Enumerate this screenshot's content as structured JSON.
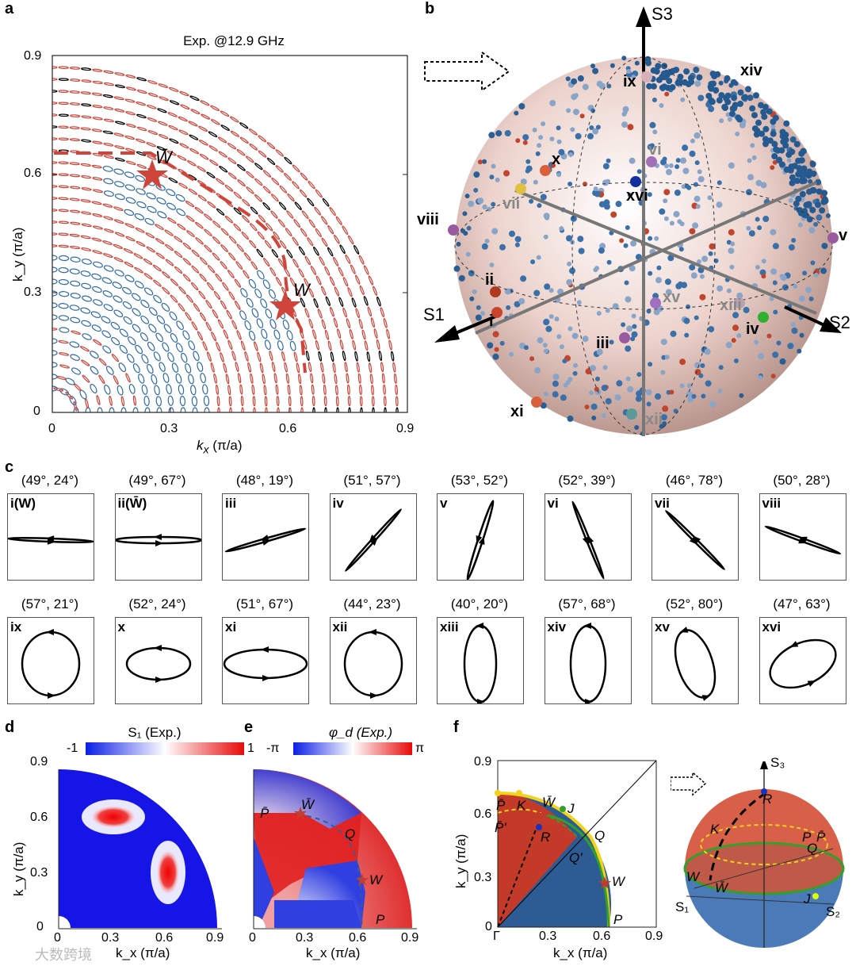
{
  "panel_labels": {
    "a": "a",
    "b": "b",
    "c": "c",
    "d": "d",
    "e": "e",
    "f": "f"
  },
  "panel_a": {
    "title": "Exp. @12.9 GHz",
    "xlabel_k": "k",
    "xlabel_sub": "x",
    "xlabel_unit": " (π/a)",
    "ylabel": "k_y (π/a)",
    "xticks": [
      "0",
      "0.3",
      "0.6",
      "0.9"
    ],
    "yticks": [
      "0",
      "0.3",
      "0.6",
      "0.9"
    ],
    "mark_wbar": "W̄",
    "mark_w": "W"
  },
  "panel_b": {
    "axes": {
      "s1": "S1",
      "s2": "S2",
      "s3": "S3"
    },
    "points": [
      "i",
      "ii",
      "iii",
      "iv",
      "v",
      "vi",
      "vii",
      "viii",
      "ix",
      "x",
      "xi",
      "xii",
      "xiii",
      "xiv",
      "xv",
      "xvi"
    ]
  },
  "panel_c": {
    "cells": [
      {
        "roman": "i(W)",
        "angles": "(49°, 24°)"
      },
      {
        "roman": "ii(W̄)",
        "angles": "(49°, 67°)"
      },
      {
        "roman": "iii",
        "angles": "(48°, 19°)"
      },
      {
        "roman": "iv",
        "angles": "(51°, 57°)"
      },
      {
        "roman": "v",
        "angles": "(53°, 52°)"
      },
      {
        "roman": "vi",
        "angles": "(52°, 39°)"
      },
      {
        "roman": "vii",
        "angles": "(46°, 78°)"
      },
      {
        "roman": "viii",
        "angles": "(50°, 28°)"
      },
      {
        "roman": "ix",
        "angles": "(57°, 21°)"
      },
      {
        "roman": "x",
        "angles": "(52°, 24°)"
      },
      {
        "roman": "xi",
        "angles": "(51°, 67°)"
      },
      {
        "roman": "xii",
        "angles": "(44°, 23°)"
      },
      {
        "roman": "xiii",
        "angles": "(40°, 20°)"
      },
      {
        "roman": "xiv",
        "angles": "(57°, 68°)"
      },
      {
        "roman": "xv",
        "angles": "(52°, 80°)"
      },
      {
        "roman": "xvi",
        "angles": "(47°, 63°)"
      }
    ]
  },
  "panel_d": {
    "colorbar_title": "S₁ (Exp.)",
    "cb_min": "-1",
    "cb_max": "1",
    "xticks": [
      "0",
      "0.3",
      "0.6",
      "0.9"
    ],
    "yticks": [
      "0",
      "0.3",
      "0.6",
      "0.9"
    ],
    "xlabel": "k_x (π/a)",
    "ylabel": "k_y (π/a)"
  },
  "panel_e": {
    "colorbar_title": "φ_d (Exp.)",
    "cb_min": "-π",
    "cb_max": "π",
    "xticks": [
      "0",
      "0.3",
      "0.6",
      "0.9"
    ],
    "xlabel": "k_x (π/a)",
    "labels": {
      "pbar": "P̄",
      "wbar": "W̄",
      "q": "Q",
      "w": "W",
      "p": "P"
    }
  },
  "panel_f": {
    "xticks": [
      "Γ",
      "0.3",
      "0.6",
      "0.9"
    ],
    "yticks": [
      "0",
      "0.3",
      "0.6",
      "0.9"
    ],
    "xlabel": "k_x (π/a)",
    "ylabel": "k_y (π/a)",
    "labels": {
      "pbar": "P̄",
      "k": "K",
      "wbar": "W̄",
      "j": "J",
      "pbarp": "P̄'",
      "r": "R",
      "q": "Q",
      "qp": "Q'",
      "w": "W",
      "p": "P"
    },
    "sphere": {
      "s3": "S₃",
      "s1": "S₁",
      "s2": "S₂",
      "r": "R",
      "k": "K",
      "w": "W",
      "wbar": "W̄",
      "j": "J",
      "p": "P",
      "pbar": "P̄",
      "q": "Q"
    }
  },
  "watermark": "大数跨境",
  "colors": {
    "red": "#d0453a",
    "blue": "#2f6aa8",
    "black": "#000000",
    "green": "#33a02c",
    "yellow": "#f2d21b"
  }
}
